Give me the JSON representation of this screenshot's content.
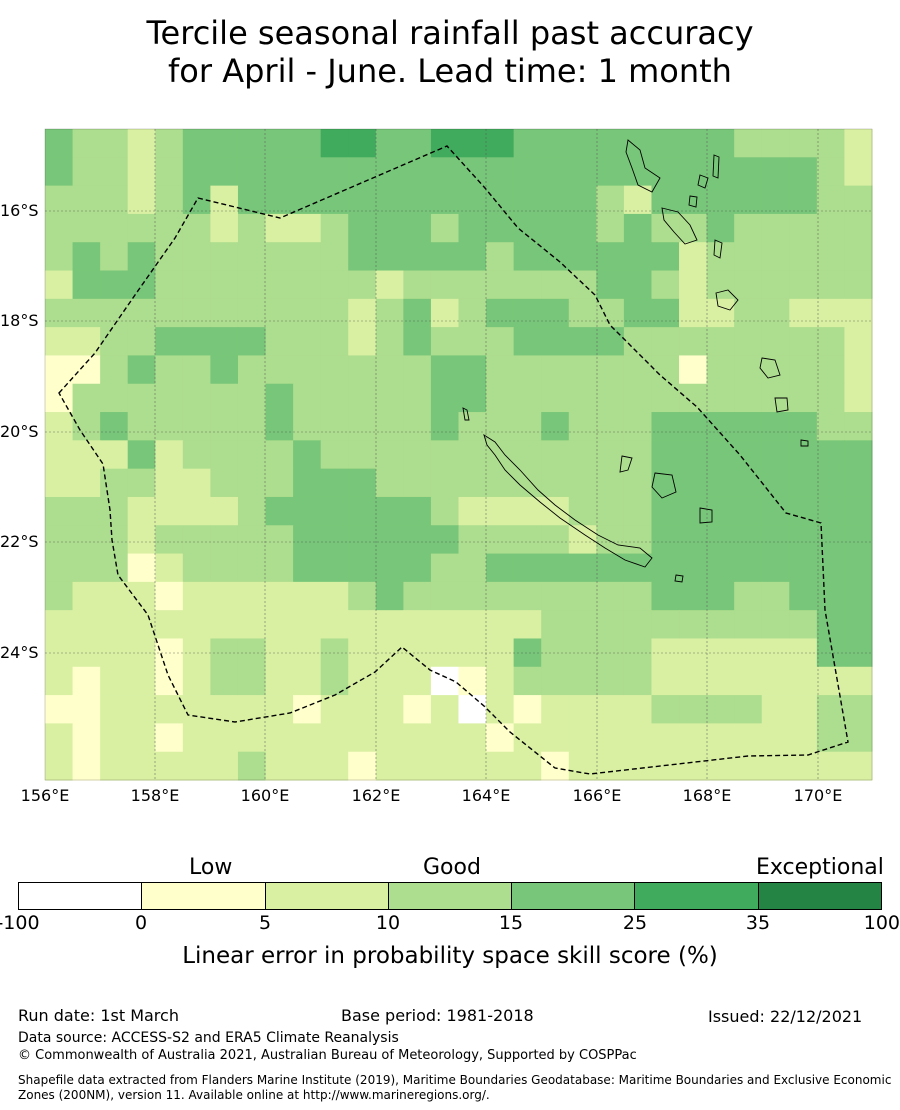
{
  "title": {
    "line1": "Tercile seasonal rainfall past accuracy",
    "line2": "for April - June. Lead time: 1 month"
  },
  "map": {
    "lat_labels": [
      "16°S",
      "18°S",
      "20°S",
      "22°S",
      "24°S"
    ],
    "lon_labels": [
      "156°E",
      "158°E",
      "160°E",
      "162°E",
      "164°E",
      "166°E",
      "168°E",
      "170°E"
    ],
    "grid_values": [
      [
        4,
        3,
        3,
        2,
        3,
        4,
        4,
        4,
        4,
        4,
        5,
        5,
        4,
        4,
        5,
        5,
        5,
        4,
        4,
        4,
        4,
        4,
        4,
        4,
        4,
        3,
        3,
        3,
        3,
        2
      ],
      [
        4,
        3,
        3,
        2,
        3,
        4,
        4,
        4,
        4,
        4,
        4,
        4,
        4,
        4,
        4,
        4,
        4,
        4,
        4,
        4,
        4,
        4,
        4,
        4,
        4,
        4,
        4,
        4,
        3,
        2
      ],
      [
        3,
        3,
        3,
        2,
        3,
        4,
        2,
        4,
        4,
        4,
        4,
        4,
        4,
        4,
        4,
        4,
        4,
        4,
        4,
        4,
        3,
        2,
        4,
        4,
        4,
        4,
        4,
        4,
        3,
        3
      ],
      [
        3,
        3,
        3,
        3,
        3,
        3,
        2,
        3,
        2,
        2,
        3,
        4,
        4,
        4,
        3,
        4,
        4,
        4,
        4,
        4,
        3,
        4,
        3,
        3,
        4,
        3,
        3,
        3,
        3,
        3
      ],
      [
        3,
        4,
        3,
        4,
        3,
        3,
        3,
        3,
        3,
        3,
        3,
        4,
        4,
        4,
        4,
        4,
        3,
        4,
        4,
        4,
        4,
        4,
        4,
        2,
        3,
        3,
        3,
        3,
        3,
        3
      ],
      [
        2,
        4,
        4,
        4,
        3,
        3,
        3,
        3,
        3,
        3,
        3,
        3,
        2,
        3,
        3,
        3,
        3,
        3,
        3,
        3,
        4,
        4,
        3,
        2,
        3,
        3,
        3,
        3,
        3,
        3
      ],
      [
        3,
        3,
        3,
        3,
        3,
        3,
        3,
        3,
        3,
        3,
        3,
        2,
        3,
        4,
        2,
        3,
        4,
        4,
        4,
        3,
        3,
        4,
        4,
        2,
        2,
        3,
        3,
        2,
        2,
        2
      ],
      [
        2,
        2,
        3,
        3,
        4,
        4,
        4,
        4,
        3,
        3,
        3,
        2,
        3,
        4,
        3,
        3,
        3,
        4,
        4,
        4,
        4,
        3,
        3,
        3,
        3,
        3,
        3,
        3,
        3,
        2
      ],
      [
        1,
        1,
        3,
        4,
        3,
        3,
        4,
        3,
        3,
        3,
        3,
        3,
        3,
        3,
        4,
        4,
        3,
        3,
        3,
        3,
        3,
        3,
        3,
        1,
        3,
        3,
        3,
        3,
        3,
        2
      ],
      [
        1,
        3,
        3,
        3,
        3,
        3,
        3,
        3,
        4,
        3,
        3,
        3,
        3,
        3,
        4,
        4,
        3,
        3,
        3,
        3,
        3,
        3,
        3,
        3,
        3,
        3,
        3,
        3,
        3,
        2
      ],
      [
        2,
        3,
        4,
        3,
        3,
        3,
        3,
        3,
        4,
        3,
        3,
        3,
        3,
        3,
        4,
        3,
        3,
        3,
        4,
        3,
        3,
        3,
        4,
        4,
        4,
        4,
        4,
        4,
        3,
        3
      ],
      [
        2,
        2,
        2,
        4,
        2,
        3,
        3,
        3,
        3,
        4,
        3,
        3,
        3,
        3,
        3,
        3,
        3,
        3,
        3,
        3,
        3,
        3,
        4,
        4,
        4,
        4,
        4,
        4,
        4,
        4
      ],
      [
        2,
        2,
        3,
        3,
        2,
        2,
        3,
        3,
        3,
        4,
        4,
        4,
        3,
        3,
        3,
        3,
        3,
        3,
        3,
        3,
        3,
        3,
        4,
        4,
        4,
        4,
        4,
        4,
        4,
        4
      ],
      [
        3,
        3,
        3,
        2,
        2,
        2,
        2,
        3,
        4,
        4,
        4,
        4,
        4,
        4,
        3,
        2,
        2,
        2,
        2,
        3,
        3,
        3,
        4,
        4,
        4,
        4,
        4,
        4,
        4,
        4
      ],
      [
        3,
        3,
        3,
        2,
        3,
        3,
        3,
        3,
        3,
        4,
        4,
        4,
        4,
        4,
        4,
        3,
        3,
        3,
        3,
        2,
        3,
        3,
        4,
        4,
        4,
        4,
        4,
        4,
        4,
        4
      ],
      [
        3,
        3,
        3,
        1,
        2,
        3,
        3,
        3,
        3,
        4,
        4,
        4,
        4,
        4,
        3,
        3,
        4,
        4,
        4,
        4,
        4,
        4,
        4,
        4,
        4,
        4,
        4,
        4,
        4,
        4
      ],
      [
        3,
        2,
        2,
        2,
        1,
        2,
        2,
        2,
        2,
        2,
        2,
        3,
        4,
        3,
        3,
        3,
        3,
        3,
        3,
        3,
        3,
        3,
        4,
        4,
        4,
        3,
        3,
        4,
        4,
        4
      ],
      [
        2,
        2,
        2,
        2,
        2,
        2,
        2,
        2,
        2,
        2,
        2,
        2,
        2,
        2,
        2,
        2,
        2,
        2,
        3,
        3,
        3,
        3,
        3,
        3,
        3,
        3,
        3,
        3,
        4,
        4
      ],
      [
        2,
        2,
        2,
        2,
        1,
        2,
        3,
        3,
        2,
        2,
        3,
        2,
        2,
        2,
        2,
        2,
        2,
        4,
        3,
        3,
        3,
        3,
        2,
        2,
        2,
        2,
        2,
        2,
        4,
        4
      ],
      [
        2,
        1,
        2,
        2,
        1,
        2,
        3,
        3,
        2,
        2,
        3,
        2,
        2,
        2,
        0,
        1,
        2,
        3,
        3,
        3,
        3,
        3,
        2,
        2,
        2,
        2,
        2,
        2,
        2,
        2
      ],
      [
        1,
        1,
        2,
        2,
        2,
        2,
        2,
        2,
        2,
        1,
        2,
        2,
        2,
        1,
        2,
        0,
        2,
        1,
        2,
        2,
        2,
        2,
        3,
        3,
        3,
        3,
        2,
        2,
        3,
        3
      ],
      [
        2,
        1,
        2,
        2,
        1,
        2,
        2,
        2,
        2,
        2,
        2,
        2,
        2,
        2,
        2,
        2,
        1,
        2,
        2,
        2,
        2,
        2,
        2,
        2,
        2,
        2,
        2,
        2,
        3,
        3
      ],
      [
        2,
        1,
        2,
        2,
        2,
        2,
        2,
        3,
        2,
        2,
        2,
        1,
        2,
        2,
        2,
        2,
        2,
        2,
        1,
        2,
        2,
        2,
        2,
        2,
        2,
        2,
        2,
        2,
        2,
        2
      ]
    ]
  },
  "colorbar": {
    "headings": [
      "Low",
      "Good",
      "Exceptional"
    ],
    "ticks": [
      "-100",
      "0",
      "5",
      "10",
      "15",
      "25",
      "35",
      "100"
    ],
    "colors": [
      "#ffffff",
      "#ffffcc",
      "#d9f0a3",
      "#addd8e",
      "#78c679",
      "#41ab5d",
      "#238443"
    ],
    "label": "Linear error in probability space skill score (%)"
  },
  "footer": {
    "run_date": "Run date: 1st March",
    "base_period": "Base period: 1981-2018",
    "issued": "Issued: 22/12/2021",
    "data_source": "Data source: ACCESS-S2 and ERA5 Climate Reanalysis",
    "copyright": "© Commonwealth of Australia 2021, Australian Bureau of Meteorology, Supported by COSPPac",
    "shapefile": "Shapefile data extracted from Flanders Marine Institute (2019), Maritime Boundaries Geodatabase: Maritime Boundaries and Exclusive Economic Zones (200NM), version 11. Available online at http://www.marineregions.org/."
  }
}
